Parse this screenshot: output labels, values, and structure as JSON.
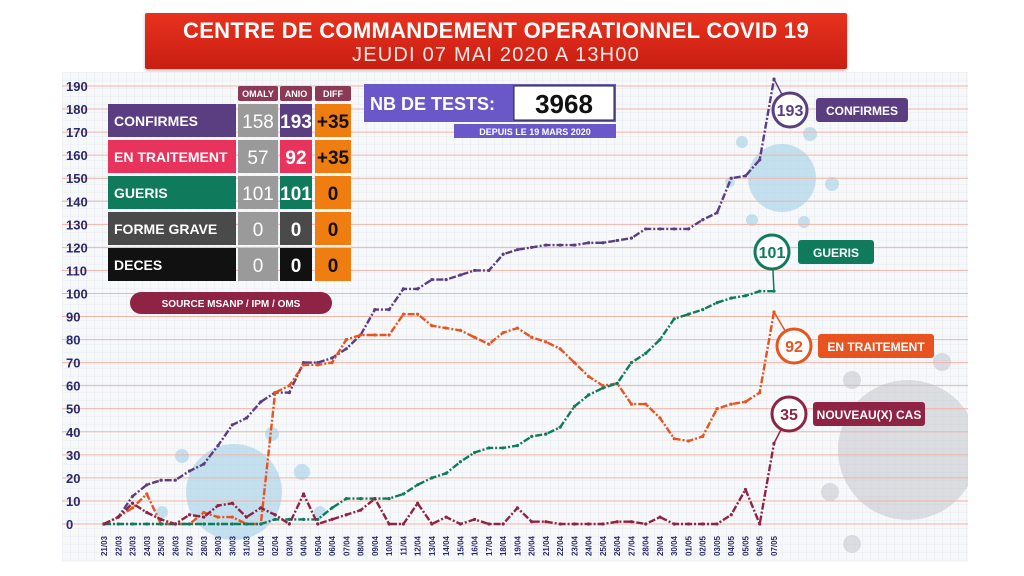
{
  "header": {
    "title": "CENTRE DE COMMANDEMENT OPERATIONNEL COVID 19",
    "subtitle": "JEUDI 07 MAI 2020 A 13H00"
  },
  "table": {
    "headers": [
      "OMALY",
      "ANIO",
      "DIFF"
    ],
    "rows": [
      {
        "label": "CONFIRMES",
        "omaly": "158",
        "anio": "193",
        "diff": "+35",
        "color": "#5b3d82"
      },
      {
        "label": "EN TRAITEMENT",
        "omaly": "57",
        "anio": "92",
        "diff": "+35",
        "color": "#e8345d"
      },
      {
        "label": "GUERIS",
        "omaly": "101",
        "anio": "101",
        "diff": "0",
        "color": "#0f7a5c"
      },
      {
        "label": "FORME GRAVE",
        "omaly": "0",
        "anio": "0",
        "diff": "0",
        "color": "#4a4a4a"
      },
      {
        "label": "DECES",
        "omaly": "0",
        "anio": "0",
        "diff": "0",
        "color": "#111111"
      }
    ]
  },
  "source": "SOURCE MSANP / IPM / OMS",
  "tests": {
    "label": "NB DE TESTS:",
    "value": "3968",
    "since": "DEPUIS LE 19 MARS 2020"
  },
  "chart_data": {
    "type": "line",
    "ylim": [
      0,
      190
    ],
    "yticks": [
      0,
      10,
      20,
      30,
      40,
      50,
      60,
      70,
      80,
      90,
      100,
      110,
      120,
      130,
      140,
      150,
      160,
      170,
      180,
      190
    ],
    "x": [
      "21/03",
      "22/03",
      "23/03",
      "24/03",
      "25/03",
      "26/03",
      "27/03",
      "28/03",
      "29/03",
      "30/03",
      "31/03",
      "01/04",
      "02/04",
      "03/04",
      "04/04",
      "05/04",
      "06/04",
      "07/04",
      "08/04",
      "09/04",
      "10/04",
      "11/04",
      "12/04",
      "13/04",
      "14/04",
      "15/04",
      "16/04",
      "17/04",
      "18/04",
      "19/04",
      "20/04",
      "21/04",
      "22/04",
      "23/04",
      "24/04",
      "25/04",
      "26/04",
      "27/04",
      "28/04",
      "29/04",
      "30/04",
      "01/05",
      "02/05",
      "03/05",
      "04/05",
      "05/05",
      "06/05",
      "07/05"
    ],
    "series": [
      {
        "name": "CONFIRMES",
        "color": "#5b3d82",
        "end_label": "193",
        "values": [
          0,
          3,
          12,
          17,
          19,
          19,
          23,
          26,
          34,
          43,
          46,
          53,
          57,
          57,
          70,
          70,
          72,
          76,
          82,
          93,
          93,
          102,
          102,
          106,
          106,
          108,
          110,
          110,
          117,
          119,
          120,
          121,
          121,
          121,
          122,
          122,
          123,
          124,
          128,
          128,
          128,
          128,
          132,
          135,
          150,
          151,
          158,
          193
        ]
      },
      {
        "name": "EN TRAITEMENT",
        "color": "#e8531f",
        "end_label": "92",
        "values": [
          0,
          3,
          7,
          13,
          0,
          0,
          0,
          5,
          3,
          3,
          0,
          0,
          57,
          60,
          69,
          69,
          70,
          80,
          82,
          82,
          82,
          91,
          91,
          86,
          85,
          84,
          81,
          78,
          83,
          85,
          81,
          79,
          76,
          70,
          64,
          60,
          61,
          52,
          52,
          46,
          37,
          36,
          38,
          50,
          52,
          53,
          57,
          92
        ]
      },
      {
        "name": "GUERIS",
        "color": "#0f7a5c",
        "end_label": "101",
        "values": [
          0,
          0,
          0,
          0,
          0,
          0,
          0,
          0,
          0,
          0,
          0,
          0,
          2,
          2,
          2,
          2,
          7,
          11,
          11,
          11,
          11,
          13,
          17,
          20,
          22,
          27,
          31,
          33,
          33,
          34,
          38,
          39,
          42,
          51,
          56,
          59,
          61,
          70,
          74,
          80,
          89,
          91,
          93,
          96,
          98,
          99,
          101,
          101
        ]
      },
      {
        "name": "NOUVEAU(X) CAS",
        "color": "#8e2344",
        "end_label": "35",
        "values": [
          0,
          3,
          9,
          5,
          2,
          0,
          4,
          3,
          8,
          9,
          3,
          7,
          4,
          0,
          13,
          0,
          2,
          4,
          6,
          11,
          0,
          0,
          9,
          0,
          3,
          0,
          2,
          0,
          0,
          7,
          1,
          1,
          0,
          0,
          0,
          0,
          1,
          1,
          0,
          3,
          0,
          0,
          0,
          0,
          4,
          15,
          0,
          35
        ]
      }
    ]
  }
}
